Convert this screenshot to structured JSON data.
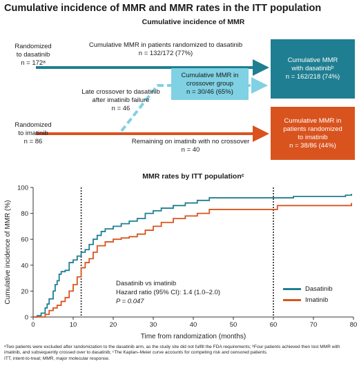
{
  "title": "Cumulative incidence of MMR and MMR rates in the ITT population",
  "flow": {
    "heading": "Cumulative incidence of MMR",
    "rand_dasatinib": [
      "Randomized",
      "to dasatinib",
      "n = 172ᵃ"
    ],
    "rand_imatinib": [
      "Randomized",
      "to imatinib",
      "n = 86"
    ],
    "top_arrow_label": [
      "Cumulative MMR in patients randomized to dasatinib",
      "n = 132/172 (77%)"
    ],
    "crossover_label": [
      "Late crossover to dasatinib",
      "after imatinib failure",
      "n = 46"
    ],
    "crossover_box": [
      "Cumulative MMR in",
      "crossover group",
      "n = 30/46 (65%)"
    ],
    "remaining_label": [
      "Remaining on imatinib with no crossover",
      "n = 40"
    ],
    "dasatinib_box": [
      "Cumulative MMR",
      "with dasatinibᵇ",
      "n = 162/218 (74%)"
    ],
    "imatinib_box": [
      "Cumulative MMR in",
      "patients randomized",
      "to imatinib",
      "n = 38/86 (44%)"
    ],
    "colors": {
      "teal": "#1f7e91",
      "orange": "#d9531e",
      "light": "#7fd1e3"
    }
  },
  "chart_heading": "MMR rates by ITT populationᶜ",
  "chart_data": {
    "type": "line",
    "xlabel": "Time from randomization (months)",
    "ylabel": "Cumulative incidence of MMR (%)",
    "xlim": [
      0,
      80
    ],
    "ylim": [
      0,
      100
    ],
    "xticks": [
      0,
      10,
      20,
      30,
      40,
      50,
      60,
      70,
      80
    ],
    "yticks": [
      0,
      20,
      40,
      60,
      80,
      100
    ],
    "vlines": [
      12,
      60
    ],
    "annotation": [
      "Dasatinib vs imatinib",
      "Hazard ratio (95% CI): 1.4 (1.0–2.0)",
      "P = 0.047"
    ],
    "series": [
      {
        "name": "Dasatinib",
        "color": "#1f7e91",
        "x": [
          0,
          1,
          2,
          3,
          3.5,
          4,
          5,
          5.5,
          6,
          6.5,
          7,
          8,
          9,
          10,
          11,
          12,
          13,
          14,
          15,
          16,
          17,
          18,
          20,
          22,
          24,
          26,
          28,
          30,
          32,
          35,
          38,
          41,
          44,
          50,
          55,
          60,
          65,
          70,
          75,
          78,
          79.5
        ],
        "y": [
          0,
          1,
          3,
          7,
          10,
          14,
          20,
          25,
          28,
          33,
          35,
          36,
          42,
          44,
          47,
          50,
          52,
          56,
          60,
          63,
          66,
          68,
          70,
          72,
          74,
          76,
          80,
          82,
          84,
          86,
          88,
          90,
          92,
          92,
          92,
          92,
          93,
          93,
          93,
          94,
          95
        ]
      },
      {
        "name": "Imatinib",
        "color": "#d9531e",
        "x": [
          0,
          2,
          3,
          4,
          5,
          6,
          7,
          8,
          9,
          10,
          11,
          12,
          13,
          14,
          15,
          16,
          18,
          20,
          22,
          24,
          26,
          28,
          30,
          32,
          35,
          38,
          41,
          44,
          50,
          55,
          60,
          61,
          65,
          70,
          75,
          78,
          79.5
        ],
        "y": [
          0,
          0,
          2,
          5,
          7,
          9,
          12,
          15,
          20,
          25,
          31,
          38,
          42,
          45,
          50,
          55,
          58,
          60,
          61,
          62,
          64,
          67,
          70,
          73,
          76,
          78,
          80,
          83,
          83,
          83,
          83,
          86,
          86,
          86,
          86,
          86,
          88
        ]
      }
    ]
  },
  "footnotes": [
    "ᵃTwo patients were excluded after randomization to the dasatinib arm, as the study site did not fulfill the FDA requirements; ᵇFour patients achieved then lost MMR with imatinib, and subsequently crossed over to dasatinib; ᶜThe Kaplan–Meier curve accounts for competing risk and censored patients.",
    "ITT, intent-to-treat; MMR, major molecular response."
  ]
}
